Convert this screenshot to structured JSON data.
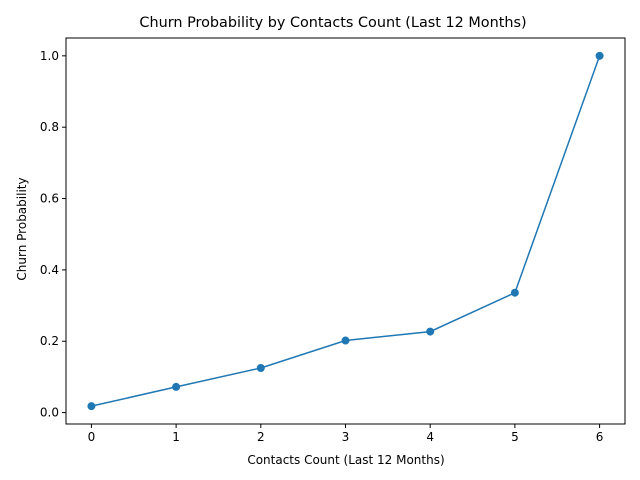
{
  "chart_data": {
    "type": "line",
    "title": "Churn Probability by Contacts Count (Last 12 Months)",
    "xlabel": "Contacts Count (Last 12 Months)",
    "ylabel": "Churn Probability",
    "x": [
      0,
      1,
      2,
      3,
      4,
      5,
      6
    ],
    "series": [
      {
        "values": [
          0.018,
          0.072,
          0.125,
          0.202,
          0.227,
          0.336,
          1.0
        ]
      }
    ],
    "xlim": [
      -0.3,
      6.3
    ],
    "ylim": [
      -0.032,
      1.05
    ],
    "xticks": [
      "0",
      "1",
      "2",
      "3",
      "4",
      "5",
      "6"
    ],
    "yticks": [
      "0.0",
      "0.2",
      "0.4",
      "0.6",
      "0.8",
      "1.0"
    ],
    "grid": false,
    "marker": "circle",
    "line_color": "#1f77b4"
  }
}
